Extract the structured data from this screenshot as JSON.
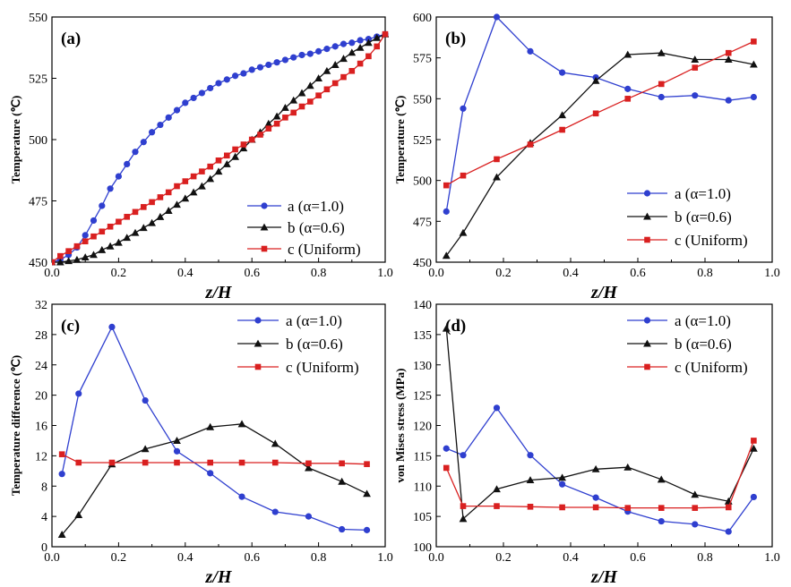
{
  "colors": {
    "a": "#2f3fcf",
    "b": "#111111",
    "c": "#d92020"
  },
  "chart_data": [
    {
      "id": "a",
      "type": "line",
      "panel_label": "(a)",
      "xlabel": "z/H",
      "ylabel": "Temperature (℃)",
      "xlim": [
        0,
        1.0
      ],
      "ylim": [
        450,
        550
      ],
      "xticks": [
        0,
        0.2,
        0.4,
        0.6,
        0.8,
        1.0
      ],
      "xtick_labels": [
        "0.0",
        "0.2",
        "0.4",
        "0.6",
        "0.8",
        "1.0"
      ],
      "yticks": [
        450,
        475,
        500,
        525,
        550
      ],
      "ytick_labels": [
        "450",
        "475",
        "500",
        "525",
        "550"
      ],
      "legend_position": "lower-right",
      "series": [
        {
          "key": "a",
          "name": "a (α=1.0)",
          "marker": "circle",
          "x": [
            0.0,
            0.025,
            0.05,
            0.075,
            0.1,
            0.125,
            0.15,
            0.175,
            0.2,
            0.225,
            0.25,
            0.275,
            0.3,
            0.325,
            0.35,
            0.375,
            0.4,
            0.425,
            0.45,
            0.475,
            0.5,
            0.525,
            0.55,
            0.575,
            0.6,
            0.625,
            0.65,
            0.675,
            0.7,
            0.725,
            0.75,
            0.775,
            0.8,
            0.825,
            0.85,
            0.875,
            0.9,
            0.925,
            0.95,
            0.975,
            1.0
          ],
          "y": [
            450,
            451,
            453,
            456,
            461,
            467,
            473,
            480,
            485,
            490,
            495,
            499,
            503,
            506,
            509,
            512,
            515,
            517,
            519,
            521,
            523,
            524.5,
            526,
            527,
            528.5,
            529.5,
            530.5,
            531.5,
            532.5,
            533.5,
            534.5,
            535,
            536,
            537,
            538,
            539,
            539.5,
            540.5,
            541,
            542,
            543
          ]
        },
        {
          "key": "b",
          "name": "b (α=0.6)",
          "marker": "triangle",
          "x": [
            0.0,
            0.025,
            0.05,
            0.075,
            0.1,
            0.125,
            0.15,
            0.175,
            0.2,
            0.225,
            0.25,
            0.275,
            0.3,
            0.325,
            0.35,
            0.375,
            0.4,
            0.425,
            0.45,
            0.475,
            0.5,
            0.525,
            0.55,
            0.575,
            0.6,
            0.625,
            0.65,
            0.675,
            0.7,
            0.725,
            0.75,
            0.775,
            0.8,
            0.825,
            0.85,
            0.875,
            0.9,
            0.925,
            0.95,
            0.975,
            1.0
          ],
          "y": [
            450,
            450,
            450.5,
            451,
            452,
            453,
            455,
            456.5,
            458,
            460,
            462,
            464,
            466,
            468.5,
            471,
            473.5,
            476,
            478.5,
            481,
            484,
            487,
            490,
            493,
            496.5,
            500,
            503,
            506.5,
            509.5,
            513,
            516,
            519,
            522,
            525,
            528,
            530.5,
            533,
            535.5,
            537.5,
            539.5,
            541.5,
            543
          ]
        },
        {
          "key": "c",
          "name": "c (Uniform)",
          "marker": "square",
          "x": [
            0.0,
            0.025,
            0.05,
            0.075,
            0.1,
            0.125,
            0.15,
            0.175,
            0.2,
            0.225,
            0.25,
            0.275,
            0.3,
            0.325,
            0.35,
            0.375,
            0.4,
            0.425,
            0.45,
            0.475,
            0.5,
            0.525,
            0.55,
            0.575,
            0.6,
            0.625,
            0.65,
            0.675,
            0.7,
            0.725,
            0.75,
            0.775,
            0.8,
            0.825,
            0.85,
            0.875,
            0.9,
            0.925,
            0.95,
            0.975,
            1.0
          ],
          "y": [
            450,
            452.5,
            454.5,
            456.5,
            458.5,
            460.5,
            462.5,
            464.5,
            466.5,
            468.5,
            470.5,
            472.5,
            474.5,
            476.5,
            478.5,
            481,
            483,
            485,
            487,
            489,
            491.5,
            493.5,
            496,
            498,
            500,
            502,
            504.5,
            506.5,
            509,
            511,
            513.5,
            515.5,
            518,
            520.5,
            523,
            525.5,
            528,
            531,
            534,
            538,
            543
          ]
        }
      ]
    },
    {
      "id": "b",
      "type": "line",
      "panel_label": "(b)",
      "xlabel": "z/H",
      "ylabel": "Temperature (℃)",
      "xlim": [
        0,
        1.0
      ],
      "ylim": [
        450,
        600
      ],
      "xticks": [
        0,
        0.2,
        0.4,
        0.6,
        0.8,
        1.0
      ],
      "xtick_labels": [
        "0.0",
        "0.2",
        "0.4",
        "0.6",
        "0.8",
        "1.0"
      ],
      "yticks": [
        450,
        475,
        500,
        525,
        550,
        575,
        600
      ],
      "ytick_labels": [
        "450",
        "475",
        "500",
        "525",
        "550",
        "575",
        "600"
      ],
      "legend_position": "lower-right",
      "series": [
        {
          "key": "a",
          "name": "a (α=1.0)",
          "marker": "circle",
          "x": [
            0.03,
            0.08,
            0.18,
            0.28,
            0.375,
            0.475,
            0.57,
            0.67,
            0.77,
            0.87,
            0.945
          ],
          "y": [
            481,
            544,
            600,
            579,
            566,
            563,
            556,
            551,
            552,
            549,
            551
          ]
        },
        {
          "key": "b",
          "name": "b (α=0.6)",
          "marker": "triangle",
          "x": [
            0.03,
            0.08,
            0.18,
            0.28,
            0.375,
            0.475,
            0.57,
            0.67,
            0.77,
            0.87,
            0.945
          ],
          "y": [
            454,
            468,
            502,
            523,
            540,
            561,
            577,
            578,
            574,
            574,
            571
          ]
        },
        {
          "key": "c",
          "name": "c (Uniform)",
          "marker": "square",
          "x": [
            0.03,
            0.08,
            0.18,
            0.28,
            0.375,
            0.475,
            0.57,
            0.67,
            0.77,
            0.87,
            0.945
          ],
          "y": [
            497,
            503,
            513,
            522,
            531,
            541,
            550,
            559,
            569,
            578,
            585
          ]
        }
      ]
    },
    {
      "id": "c",
      "type": "line",
      "panel_label": "(c)",
      "xlabel": "z/H",
      "ylabel": "Temperature difference (℃)",
      "xlim": [
        0,
        1.0
      ],
      "ylim": [
        0,
        32
      ],
      "xticks": [
        0,
        0.2,
        0.4,
        0.6,
        0.8,
        1.0
      ],
      "xtick_labels": [
        "0.0",
        "0.2",
        "0.4",
        "0.6",
        "0.8",
        "1.0"
      ],
      "yticks": [
        0,
        4,
        8,
        12,
        16,
        20,
        24,
        28,
        32
      ],
      "ytick_labels": [
        "0",
        "4",
        "8",
        "12",
        "16",
        "20",
        "24",
        "28",
        "32"
      ],
      "legend_position": "top-right",
      "series": [
        {
          "key": "a",
          "name": "a (α=1.0)",
          "marker": "circle",
          "x": [
            0.03,
            0.08,
            0.18,
            0.28,
            0.375,
            0.475,
            0.57,
            0.67,
            0.77,
            0.87,
            0.945
          ],
          "y": [
            9.6,
            20.2,
            29.0,
            19.3,
            12.6,
            9.7,
            6.6,
            4.6,
            4.0,
            2.3,
            2.2
          ]
        },
        {
          "key": "b",
          "name": "b (α=0.6)",
          "marker": "triangle",
          "x": [
            0.03,
            0.08,
            0.18,
            0.28,
            0.375,
            0.475,
            0.57,
            0.67,
            0.77,
            0.87,
            0.945
          ],
          "y": [
            1.6,
            4.2,
            10.9,
            12.9,
            14.0,
            15.8,
            16.2,
            13.6,
            10.4,
            8.6,
            7.0
          ]
        },
        {
          "key": "c",
          "name": "c (Uniform)",
          "marker": "square",
          "x": [
            0.03,
            0.08,
            0.18,
            0.28,
            0.375,
            0.475,
            0.57,
            0.67,
            0.77,
            0.87,
            0.945
          ],
          "y": [
            12.2,
            11.1,
            11.1,
            11.1,
            11.1,
            11.1,
            11.1,
            11.1,
            11.0,
            11.0,
            10.9
          ]
        }
      ]
    },
    {
      "id": "d",
      "type": "line",
      "panel_label": "(d)",
      "xlabel": "z/H",
      "ylabel": "von Mises stress (MPa)",
      "xlim": [
        0,
        1.0
      ],
      "ylim": [
        100,
        140
      ],
      "xticks": [
        0,
        0.2,
        0.4,
        0.6,
        0.8,
        1.0
      ],
      "xtick_labels": [
        "0.0",
        "0.2",
        "0.4",
        "0.6",
        "0.8",
        "1.0"
      ],
      "yticks": [
        100,
        105,
        110,
        115,
        120,
        125,
        130,
        135,
        140
      ],
      "ytick_labels": [
        "100",
        "105",
        "110",
        "115",
        "120",
        "125",
        "130",
        "135",
        "140"
      ],
      "legend_position": "top-right",
      "series": [
        {
          "key": "a",
          "name": "a (α=1.0)",
          "marker": "circle",
          "x": [
            0.03,
            0.08,
            0.18,
            0.28,
            0.375,
            0.475,
            0.57,
            0.67,
            0.77,
            0.87,
            0.945
          ],
          "y": [
            116.2,
            115.1,
            122.9,
            115.1,
            110.3,
            108.1,
            105.8,
            104.2,
            103.7,
            102.5,
            108.2
          ]
        },
        {
          "key": "b",
          "name": "b (α=0.6)",
          "marker": "triangle",
          "x": [
            0.03,
            0.08,
            0.18,
            0.28,
            0.375,
            0.475,
            0.57,
            0.67,
            0.77,
            0.87,
            0.945
          ],
          "y": [
            136.0,
            104.6,
            109.5,
            111.0,
            111.4,
            112.8,
            113.1,
            111.1,
            108.6,
            107.5,
            116.2
          ]
        },
        {
          "key": "c",
          "name": "c (Uniform)",
          "marker": "square",
          "x": [
            0.03,
            0.08,
            0.18,
            0.28,
            0.375,
            0.475,
            0.57,
            0.67,
            0.77,
            0.87,
            0.945
          ],
          "y": [
            113.0,
            106.7,
            106.7,
            106.6,
            106.5,
            106.5,
            106.4,
            106.4,
            106.4,
            106.5,
            117.5
          ]
        }
      ]
    }
  ]
}
